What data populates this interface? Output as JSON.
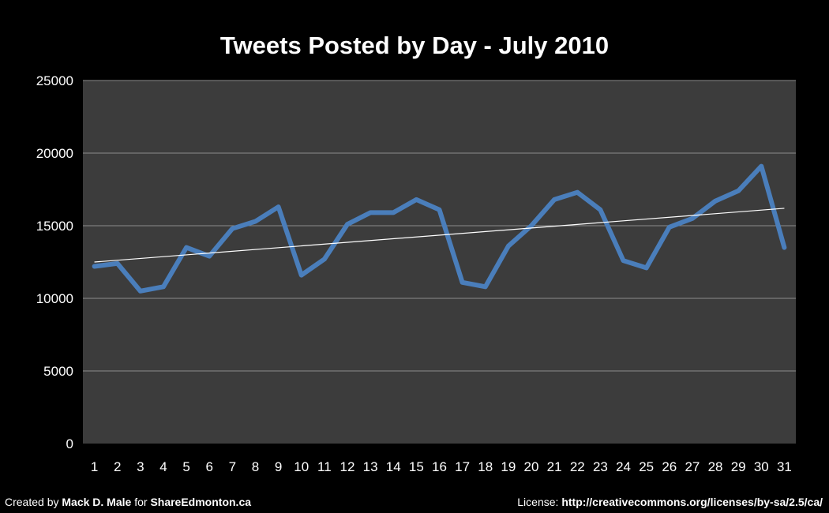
{
  "chart_data": {
    "type": "line",
    "title": "Tweets Posted by Day - July 2010",
    "xlabel": "",
    "ylabel": "",
    "categories": [
      "1",
      "2",
      "3",
      "4",
      "5",
      "6",
      "7",
      "8",
      "9",
      "10",
      "11",
      "12",
      "13",
      "14",
      "15",
      "16",
      "17",
      "18",
      "19",
      "20",
      "21",
      "22",
      "23",
      "24",
      "25",
      "26",
      "27",
      "28",
      "29",
      "30",
      "31"
    ],
    "series": [
      {
        "values": [
          12200,
          12400,
          10500,
          10800,
          13500,
          12900,
          14800,
          15300,
          16300,
          11600,
          12700,
          15100,
          15900,
          15900,
          16800,
          16100,
          11100,
          10800,
          13600,
          15000,
          16800,
          17300,
          16100,
          12600,
          12100,
          14900,
          15500,
          16700,
          17400,
          19100,
          13500
        ],
        "color": "#4a7ebb"
      }
    ],
    "trendline": {
      "type": "linear",
      "start": 12500,
      "end": 16200,
      "color": "#ffffff"
    },
    "ylim": [
      0,
      25000
    ],
    "yticks": [
      0,
      5000,
      10000,
      15000,
      20000,
      25000
    ],
    "grid": true,
    "legend": "none",
    "colors": {
      "background": "#000000",
      "plot_area": "#3c3c3c",
      "gridline": "#8c8c8c"
    }
  },
  "footer": {
    "left": {
      "prefix": "Created by ",
      "author": "Mack D. Male",
      "middle": " for ",
      "site": "ShareEdmonton.ca"
    },
    "right": {
      "prefix": "License: ",
      "url": "http://creativecommons.org/licenses/by-sa/2.5/ca/"
    }
  }
}
